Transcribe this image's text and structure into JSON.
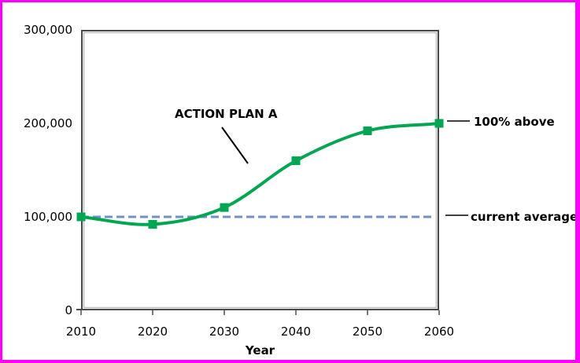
{
  "page": {
    "background": "#FFFFFF",
    "border_color": "#FF00FF"
  },
  "chart_data": {
    "type": "line",
    "title": "",
    "xlabel": "Year",
    "ylabel": "",
    "x": [
      2010,
      2020,
      2030,
      2040,
      2050,
      2060
    ],
    "xtick_labels": [
      "2010",
      "2020",
      "2030",
      "2040",
      "2050",
      "2060"
    ],
    "ylim": [
      0,
      300000
    ],
    "yticks": [
      0,
      100000,
      200000,
      300000
    ],
    "ytick_labels": [
      "0",
      "100,000",
      "200,000",
      "300,000"
    ],
    "grid": false,
    "legend": "none",
    "series": [
      {
        "name": "ACTION PLAN A",
        "values": [
          100000,
          92000,
          110000,
          160000,
          192000,
          200000
        ],
        "color": "#00A651",
        "marker": "square",
        "smooth": true
      }
    ],
    "reference_line": {
      "value": 100000,
      "style": "dashed",
      "color": "#7090C8",
      "label": "current average"
    },
    "annotations": {
      "series_label": {
        "text": "ACTION PLAN A"
      },
      "end_label": {
        "text": "100% above"
      },
      "reference_label": {
        "text": "current average"
      }
    },
    "axis_color": "#4A4A4A"
  }
}
